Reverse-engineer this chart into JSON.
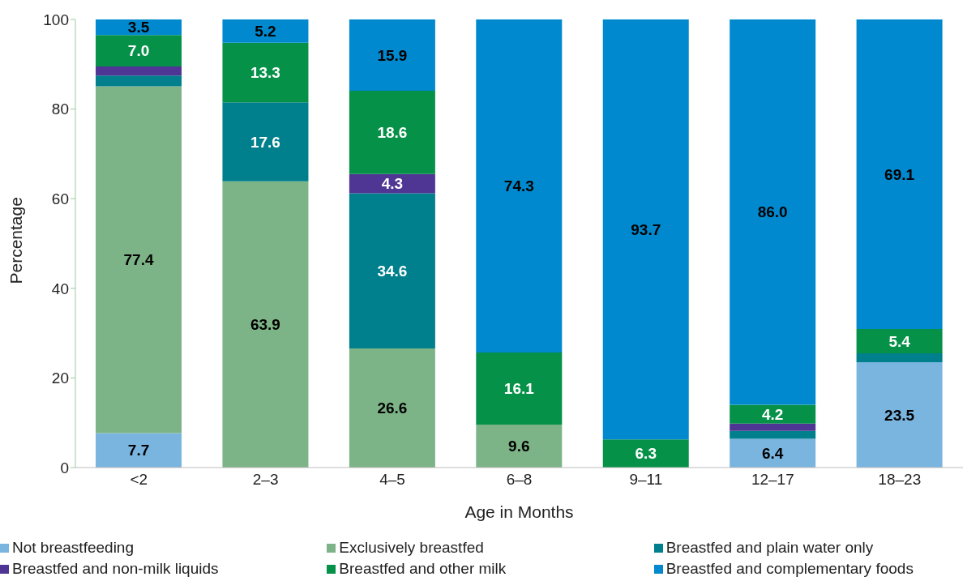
{
  "chart_data": {
    "type": "bar",
    "stacked": true,
    "xlabel": "Age in Months",
    "ylabel": "Percentage",
    "categories": [
      "<2",
      "2–3",
      "4–5",
      "6–8",
      "9–11",
      "12–17",
      "18–23"
    ],
    "ylim": [
      0,
      100
    ],
    "yticks": [
      0,
      20,
      40,
      60,
      80,
      100
    ],
    "grid": false,
    "legend": "bottom",
    "series": [
      {
        "name": "Not breastfeeding",
        "color": "#7ab5e0",
        "values": [
          7.7,
          null,
          null,
          null,
          null,
          6.4,
          23.5
        ],
        "value_labels": [
          "7.7",
          null,
          null,
          null,
          null,
          "6.4",
          "23.5"
        ]
      },
      {
        "name": "Exclusively breastfed",
        "color": "#7db487",
        "values": [
          77.4,
          63.9,
          26.6,
          9.6,
          null,
          null,
          null
        ],
        "value_labels": [
          "77.4",
          "63.9",
          "26.6",
          "9.6",
          null,
          null,
          null
        ]
      },
      {
        "name": "Breastfed and plain water only",
        "color": "#007f8c",
        "values": [
          2.4,
          17.6,
          34.6,
          null,
          null,
          1.8,
          2.0
        ],
        "value_labels": [
          null,
          "17.6",
          "34.6",
          null,
          null,
          null,
          null
        ]
      },
      {
        "name": "Breastfed and non-milk liquids",
        "color": "#4f3594",
        "values": [
          2.0,
          null,
          4.3,
          null,
          null,
          1.6,
          null
        ],
        "value_labels": [
          null,
          null,
          "4.3",
          null,
          null,
          null,
          null
        ]
      },
      {
        "name": "Breastfed and other milk",
        "color": "#069148",
        "values": [
          7.0,
          13.3,
          18.6,
          16.1,
          6.3,
          4.2,
          5.4
        ],
        "value_labels": [
          "7.0",
          "13.3",
          "18.6",
          "16.1",
          "6.3",
          "4.2",
          "5.4"
        ]
      },
      {
        "name": "Breastfed and complementary foods",
        "color": "#0089cf",
        "values": [
          3.5,
          5.2,
          15.9,
          74.3,
          93.7,
          86.0,
          69.1
        ],
        "value_labels": [
          "3.5",
          "5.2",
          "15.9",
          "74.3",
          "93.7",
          "86.0",
          "69.1"
        ]
      }
    ]
  }
}
